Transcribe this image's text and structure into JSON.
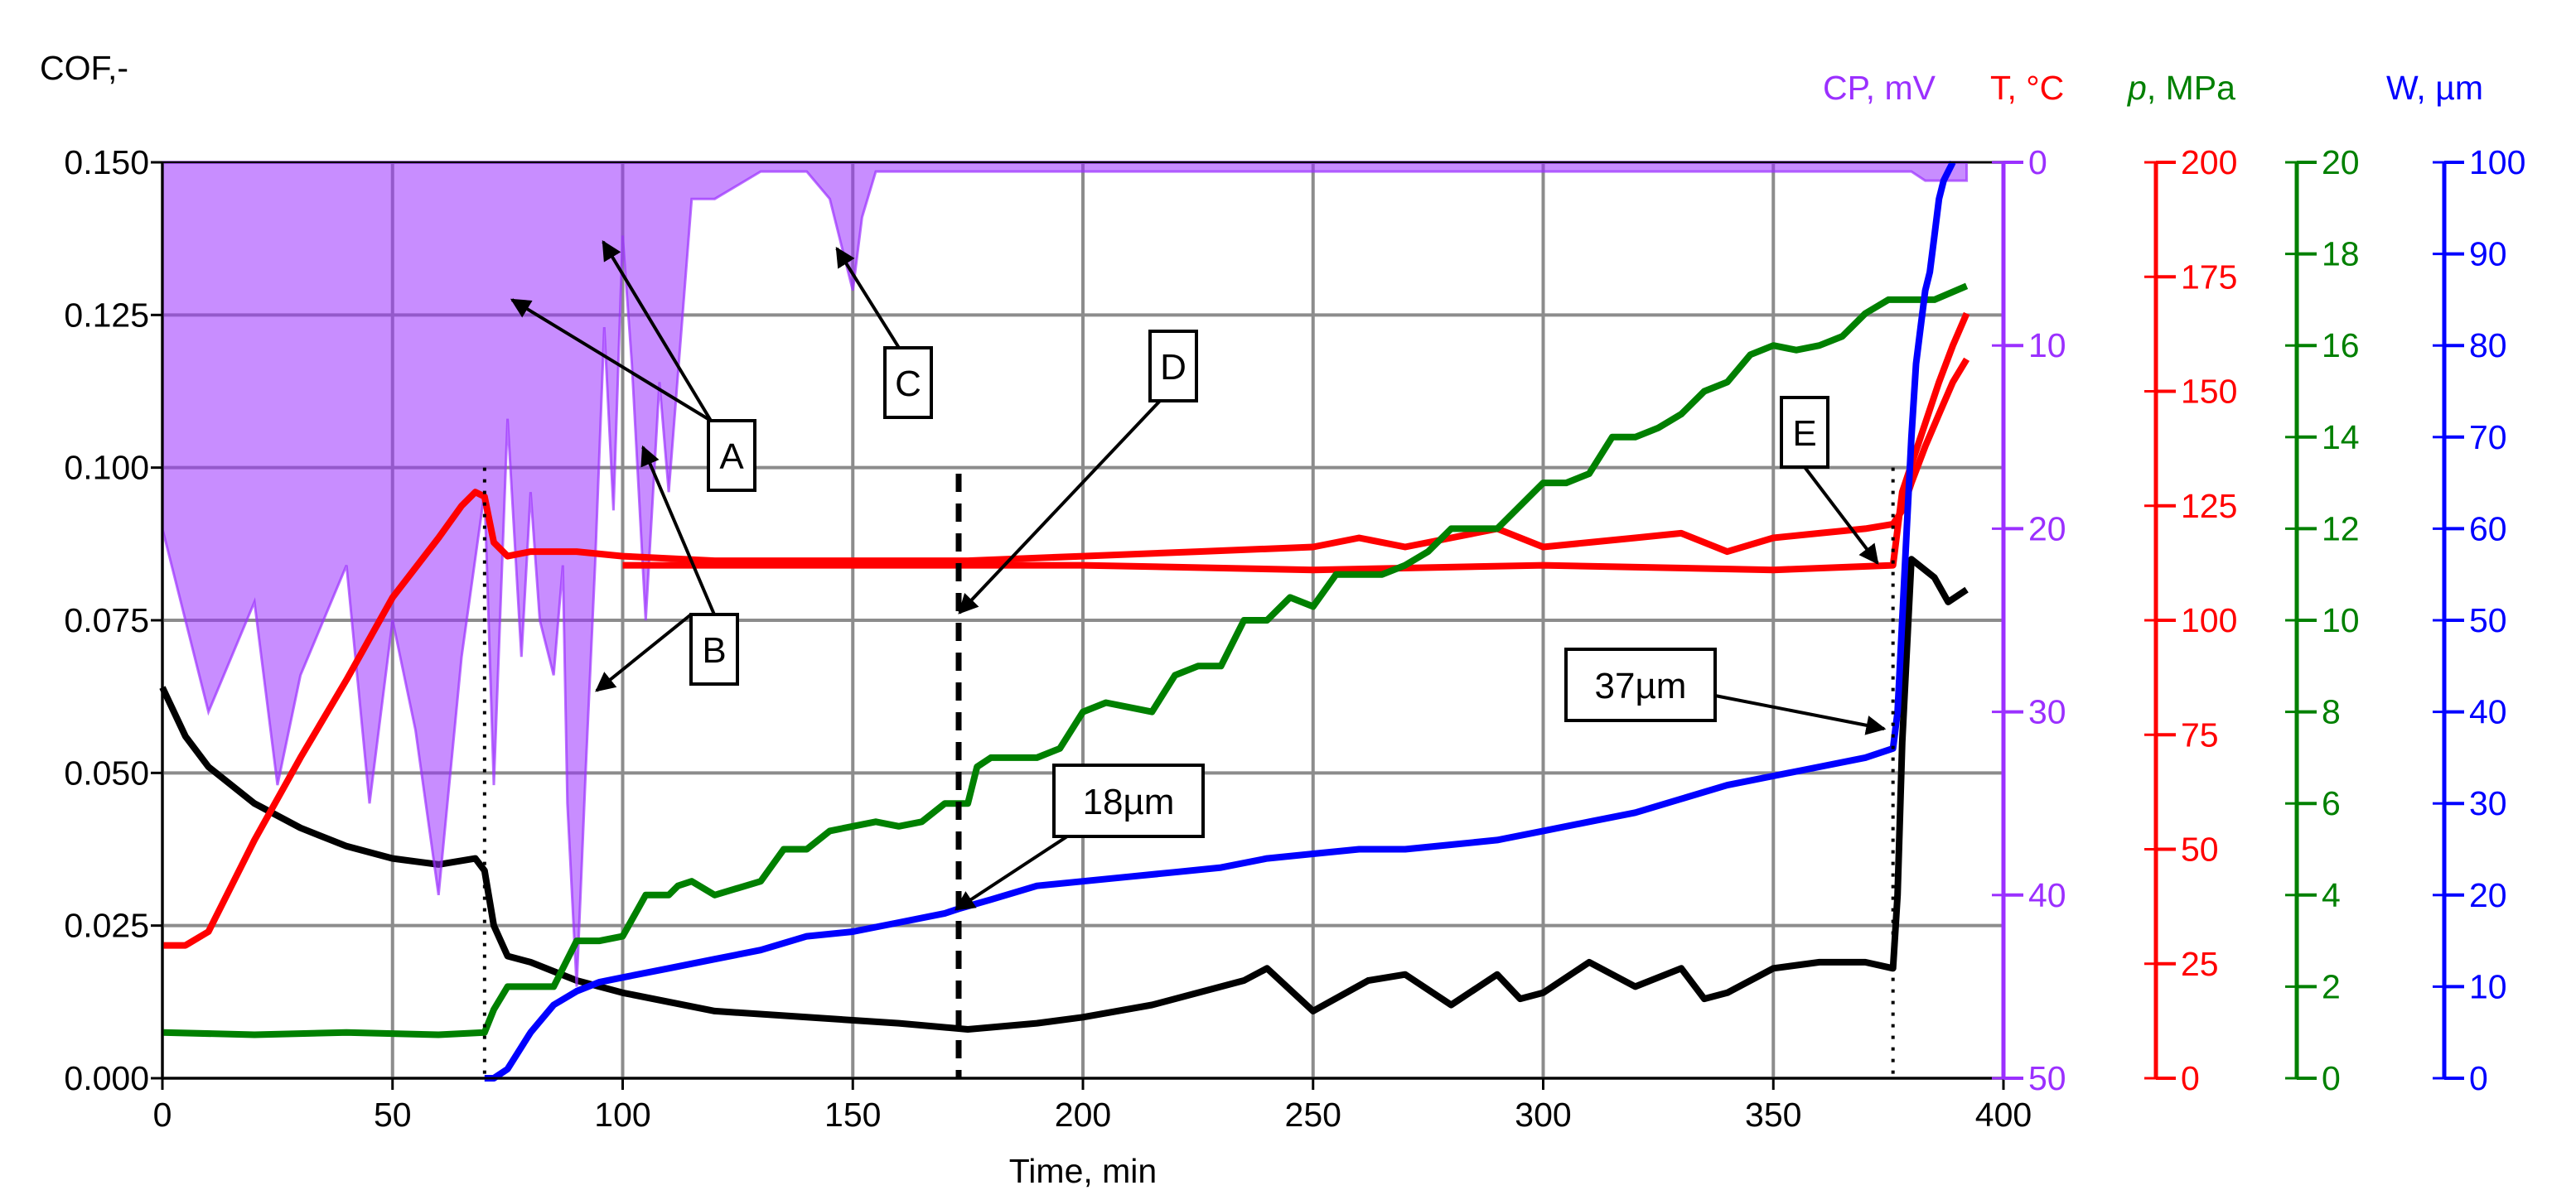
{
  "chart_data": {
    "type": "line",
    "x_axis": {
      "label": "Time,  min",
      "range": [
        0,
        400
      ],
      "ticks": [
        "0",
        "50",
        "100",
        "150",
        "200",
        "250",
        "300",
        "350",
        "400"
      ]
    },
    "left_axis": {
      "label": "COF,-",
      "range": [
        0,
        0.15
      ],
      "ticks": [
        "0.000",
        "0.025",
        "0.050",
        "0.075",
        "0.100",
        "0.125",
        "0.150"
      ]
    },
    "right_axes": [
      {
        "key": "cp",
        "label": "CP, mV",
        "color": "#9b30ff",
        "range": [
          50,
          0
        ],
        "ticks": [
          "0",
          "10",
          "20",
          "30",
          "40",
          "50"
        ]
      },
      {
        "key": "t",
        "label": "T, °C",
        "color": "#ff0000",
        "range": [
          0,
          200
        ],
        "ticks": [
          "0",
          "25",
          "50",
          "75",
          "100",
          "125",
          "150",
          "175",
          "200"
        ]
      },
      {
        "key": "p",
        "label_italic": "p",
        "label": ", MPa",
        "color": "#008000",
        "range": [
          0,
          20
        ],
        "ticks": [
          "0",
          "2",
          "4",
          "6",
          "8",
          "10",
          "12",
          "14",
          "16",
          "18",
          "20"
        ]
      },
      {
        "key": "w",
        "label": "W, µm",
        "color": "#0000ff",
        "range": [
          0,
          100
        ],
        "ticks": [
          "0",
          "10",
          "20",
          "30",
          "40",
          "50",
          "60",
          "70",
          "80",
          "90",
          "100"
        ]
      }
    ],
    "grid": true,
    "series": [
      {
        "axis": "left",
        "color": "#000000",
        "x": [
          0,
          5,
          10,
          20,
          30,
          40,
          50,
          60,
          68,
          70,
          72,
          75,
          80,
          90,
          100,
          120,
          140,
          160,
          175,
          190,
          200,
          215,
          225,
          235,
          240,
          250,
          262,
          270,
          280,
          290,
          295,
          300,
          310,
          320,
          330,
          335,
          340,
          350,
          360,
          370,
          376,
          377,
          378,
          380,
          385,
          388,
          392
        ],
        "y": [
          0.064,
          0.056,
          0.051,
          0.045,
          0.041,
          0.038,
          0.036,
          0.035,
          0.036,
          0.034,
          0.025,
          0.02,
          0.019,
          0.016,
          0.014,
          0.011,
          0.01,
          0.009,
          0.008,
          0.009,
          0.01,
          0.012,
          0.014,
          0.016,
          0.018,
          0.011,
          0.016,
          0.017,
          0.012,
          0.017,
          0.013,
          0.014,
          0.019,
          0.015,
          0.018,
          0.013,
          0.014,
          0.018,
          0.019,
          0.019,
          0.018,
          0.03,
          0.055,
          0.085,
          0.082,
          0.078,
          0.08
        ]
      },
      {
        "axis": "cp",
        "color": "#9b30ff",
        "fill": true,
        "x": [
          0,
          10,
          20,
          25,
          30,
          40,
          45,
          50,
          55,
          60,
          65,
          70,
          72,
          75,
          78,
          80,
          82,
          85,
          87,
          88,
          90,
          92,
          94,
          96,
          98,
          100,
          102,
          105,
          108,
          110,
          115,
          120,
          130,
          140,
          145,
          148,
          150,
          152,
          155,
          160,
          200,
          250,
          300,
          350,
          380,
          383,
          386,
          388,
          392
        ],
        "y": [
          20,
          30,
          24,
          34,
          28,
          22,
          35,
          25,
          31,
          40,
          27,
          18,
          34,
          14,
          27,
          18,
          25,
          28,
          22,
          35,
          45,
          33,
          22,
          9,
          19,
          4,
          11,
          25,
          12,
          18,
          2,
          2,
          0.5,
          0.5,
          2,
          5,
          7,
          3,
          0.5,
          0.5,
          0.5,
          0.5,
          0.5,
          0.5,
          0.5,
          1,
          1,
          1,
          1
        ]
      },
      {
        "axis": "t",
        "color": "#ff0000",
        "x": [
          0,
          5,
          10,
          20,
          30,
          40,
          50,
          60,
          65,
          68,
          70,
          72,
          75,
          80,
          90,
          100,
          120,
          150,
          175,
          200,
          225,
          250,
          260,
          270,
          280,
          290,
          300,
          310,
          320,
          330,
          340,
          350,
          360,
          370,
          376,
          378,
          380,
          383,
          386,
          389,
          392
        ],
        "y": [
          29,
          29,
          32,
          52,
          70,
          87,
          105,
          118,
          125,
          128,
          127,
          117,
          114,
          115,
          115,
          114,
          113,
          113,
          113,
          114,
          115,
          116,
          118,
          116,
          118,
          120,
          116,
          117,
          118,
          119,
          115,
          118,
          119,
          120,
          121,
          124,
          130,
          138,
          145,
          152,
          157
        ]
      },
      {
        "axis": "t",
        "color": "#ff0000",
        "x": [
          100,
          150,
          200,
          250,
          300,
          350,
          376,
          378,
          382,
          386,
          389,
          392
        ],
        "y": [
          112,
          112,
          112,
          111,
          112,
          111,
          112,
          128,
          140,
          152,
          160,
          167
        ]
      },
      {
        "axis": "p",
        "color": "#008000",
        "x": [
          0,
          20,
          40,
          60,
          70,
          72,
          75,
          80,
          85,
          90,
          95,
          100,
          105,
          110,
          112,
          115,
          120,
          130,
          135,
          140,
          145,
          150,
          155,
          160,
          165,
          170,
          175,
          177,
          180,
          190,
          195,
          200,
          205,
          215,
          220,
          225,
          230,
          235,
          240,
          245,
          250,
          255,
          260,
          265,
          270,
          275,
          280,
          290,
          295,
          300,
          305,
          310,
          315,
          320,
          325,
          330,
          335,
          340,
          345,
          350,
          355,
          360,
          365,
          370,
          375,
          380,
          385,
          392
        ],
        "y": [
          1,
          0.95,
          1,
          0.95,
          1,
          1.5,
          2,
          2,
          2,
          3,
          3,
          3.1,
          4,
          4,
          4.2,
          4.3,
          4,
          4.3,
          5,
          5,
          5.4,
          5.5,
          5.6,
          5.5,
          5.6,
          6,
          6,
          6.8,
          7,
          7,
          7.2,
          8,
          8.2,
          8,
          8.8,
          9,
          9,
          10,
          10,
          10.5,
          10.3,
          11,
          11,
          11,
          11.2,
          11.5,
          12,
          12,
          12.5,
          13,
          13,
          13.2,
          14,
          14,
          14.2,
          14.5,
          15,
          15.2,
          15.8,
          16,
          15.9,
          16,
          16.2,
          16.7,
          17,
          17,
          17,
          17.3
        ]
      },
      {
        "axis": "w",
        "color": "#0000ff",
        "x": [
          70,
          72,
          75,
          80,
          85,
          90,
          95,
          100,
          110,
          120,
          130,
          140,
          150,
          160,
          170,
          173,
          180,
          190,
          200,
          210,
          220,
          230,
          240,
          250,
          260,
          270,
          280,
          290,
          300,
          310,
          320,
          330,
          340,
          350,
          360,
          370,
          376,
          377,
          378,
          379,
          380,
          381,
          382,
          383,
          384,
          385,
          386,
          387,
          388,
          389
        ],
        "y": [
          0,
          -2,
          1,
          5,
          8,
          9.5,
          10.5,
          11,
          12,
          13,
          14,
          15.5,
          16,
          17,
          18,
          18.5,
          19.5,
          21,
          21.5,
          22,
          22.5,
          23,
          24,
          24.5,
          25,
          25,
          25.5,
          26,
          27,
          28,
          29,
          30.5,
          32,
          33,
          34,
          35,
          36,
          40,
          50,
          60,
          70,
          78,
          82,
          86,
          88,
          92,
          96,
          98,
          99,
          100
        ]
      }
    ],
    "annotations": [
      {
        "label": "A"
      },
      {
        "label": "B"
      },
      {
        "label": "C"
      },
      {
        "label": "D"
      },
      {
        "label": "E"
      },
      {
        "label": "18µm"
      },
      {
        "label": "37µm"
      }
    ]
  }
}
